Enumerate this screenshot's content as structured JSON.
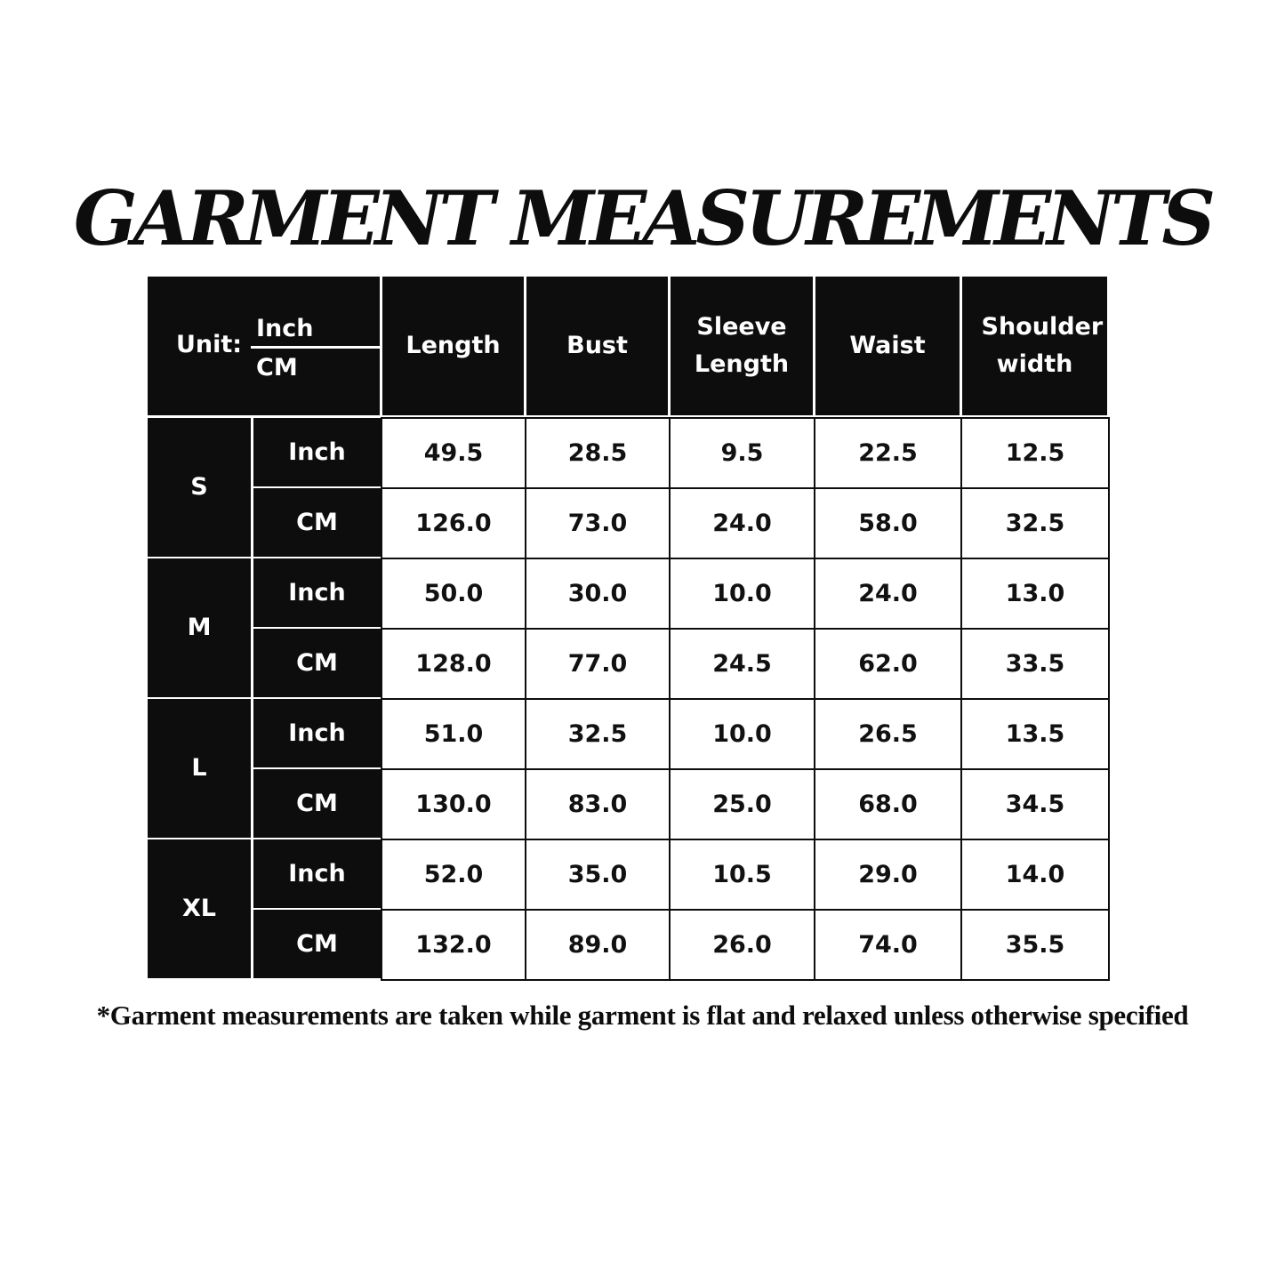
{
  "title": "GARMENT MEASUREMENTS",
  "footnote": "*Garment measurements are taken while garment is flat and relaxed unless otherwise specified",
  "colors": {
    "header_bg": "#0d0d0d",
    "header_text": "#ffffff",
    "cell_bg": "#ffffff",
    "cell_text": "#111111"
  },
  "table": {
    "unit_label": "Unit:",
    "unit_top": "Inch",
    "unit_bottom": "CM",
    "columns": [
      "Length",
      "Bust",
      "Sleeve Length",
      "Waist",
      "Shoulder width"
    ],
    "sizes": [
      {
        "size": "S",
        "rows": [
          {
            "unit": "Inch",
            "values": [
              "49.5",
              "28.5",
              "9.5",
              "22.5",
              "12.5"
            ]
          },
          {
            "unit": "CM",
            "values": [
              "126.0",
              "73.0",
              "24.0",
              "58.0",
              "32.5"
            ]
          }
        ]
      },
      {
        "size": "M",
        "rows": [
          {
            "unit": "Inch",
            "values": [
              "50.0",
              "30.0",
              "10.0",
              "24.0",
              "13.0"
            ]
          },
          {
            "unit": "CM",
            "values": [
              "128.0",
              "77.0",
              "24.5",
              "62.0",
              "33.5"
            ]
          }
        ]
      },
      {
        "size": "L",
        "rows": [
          {
            "unit": "Inch",
            "values": [
              "51.0",
              "32.5",
              "10.0",
              "26.5",
              "13.5"
            ]
          },
          {
            "unit": "CM",
            "values": [
              "130.0",
              "83.0",
              "25.0",
              "68.0",
              "34.5"
            ]
          }
        ]
      },
      {
        "size": "XL",
        "rows": [
          {
            "unit": "Inch",
            "values": [
              "52.0",
              "35.0",
              "10.5",
              "29.0",
              "14.0"
            ]
          },
          {
            "unit": "CM",
            "values": [
              "132.0",
              "89.0",
              "26.0",
              "74.0",
              "35.5"
            ]
          }
        ]
      }
    ]
  }
}
